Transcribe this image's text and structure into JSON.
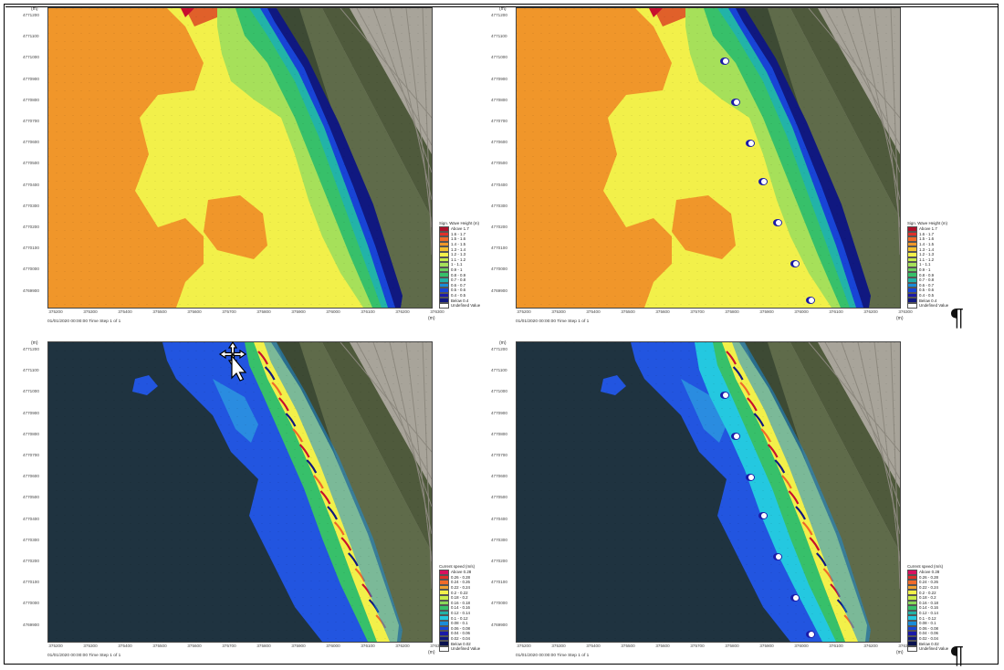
{
  "panels": [
    {
      "id": "top-left",
      "unit_y": "(m)",
      "unit_x": "(m)",
      "caption": "01/01/2020 00:00:00 Time Step 1 of 1",
      "legend_title": "Sign. Wave Height (m)",
      "legend_labels": [
        "Above 1.7",
        "1.6 - 1.7",
        "1.5 - 1.6",
        "1.4 - 1.5",
        "1.3 - 1.4",
        "1.2 - 1.3",
        "1.1 - 1.2",
        "1 - 1.1",
        "0.9 - 1",
        "0.8 - 0.9",
        "0.7 - 0.8",
        "0.6 - 0.7",
        "0.5 - 0.6",
        "0.4 - 0.5",
        "Below 0.4",
        "Undefined Value"
      ],
      "colors": {
        "red": "#c8102e",
        "orange": "#f0962a",
        "yellow": "#f2f04a",
        "lightgreen": "#a6e05a",
        "green": "#37c06a",
        "teal": "#22b3a8",
        "blue": "#1844d6",
        "navy": "#101880",
        "land": "#5f6b4a",
        "field": "#a8a49a"
      }
    },
    {
      "id": "top-right",
      "unit_y": "(m)",
      "unit_x": "(m)",
      "caption": "01/01/2020 00:00:00 Time Step 1 of 1",
      "legend_title": "Sign. Wave Height (m)",
      "legend_labels": [
        "Above 1.7",
        "1.6 - 1.7",
        "1.5 - 1.6",
        "1.4 - 1.5",
        "1.3 - 1.4",
        "1.2 - 1.3",
        "1.1 - 1.2",
        "1 - 1.1",
        "0.9 - 1",
        "0.8 - 0.9",
        "0.7 - 0.8",
        "0.6 - 0.7",
        "0.5 - 0.6",
        "0.4 - 0.5",
        "Below 0.4",
        "Undefined Value"
      ]
    },
    {
      "id": "bottom-left",
      "unit_y": "(m)",
      "unit_x": "(m)",
      "caption": "01/01/2020 00:00:00 Time Step 1 of 1",
      "legend_title": "Current speed (m/s)",
      "legend_labels": [
        "Above 0.28",
        "0.26 - 0.28",
        "0.24 - 0.26",
        "0.22 - 0.24",
        "0.2 - 0.22",
        "0.18 - 0.2",
        "0.16 - 0.18",
        "0.14 - 0.16",
        "0.12 - 0.14",
        "0.1 - 0.12",
        "0.08 - 0.1",
        "0.06 - 0.08",
        "0.04 - 0.06",
        "0.02 - 0.04",
        "Below 0.02",
        "Undefined Value"
      ]
    },
    {
      "id": "bottom-right",
      "unit_y": "(m)",
      "unit_x": "(m)",
      "caption": "01/01/2020 00:00:00 Time Step 1 of 1",
      "legend_title": "Current speed (m/s)",
      "legend_labels": [
        "Above 0.28",
        "0.26 - 0.28",
        "0.24 - 0.26",
        "0.22 - 0.24",
        "0.2 - 0.22",
        "0.18 - 0.2",
        "0.16 - 0.18",
        "0.14 - 0.16",
        "0.12 - 0.14",
        "0.1 - 0.12",
        "0.08 - 0.1",
        "0.06 - 0.08",
        "0.04 - 0.06",
        "0.02 - 0.04",
        "Below 0.02",
        "Undefined Value"
      ]
    }
  ],
  "y_ticks": [
    "4771200",
    "4771100",
    "4771000",
    "4770900",
    "4770800",
    "4770700",
    "4770600",
    "4770500",
    "4770400",
    "4770300",
    "4770200",
    "4770100",
    "4770000",
    "4769900"
  ],
  "x_ticks": [
    "375200",
    "375300",
    "375400",
    "375500",
    "375600",
    "375700",
    "375800",
    "375900",
    "376000",
    "376100",
    "376200",
    "376300"
  ],
  "wave_legend_colors": [
    "#b0102a",
    "#e0302a",
    "#f06a2a",
    "#f0962a",
    "#f4c030",
    "#f2f04a",
    "#c8ec4a",
    "#a6e05a",
    "#6cd060",
    "#37c06a",
    "#22b3a8",
    "#1a8cd8",
    "#1844d6",
    "#1a1aa8",
    "#101880",
    "#ffffff"
  ],
  "current_legend_colors": [
    "#d81060",
    "#e0302a",
    "#f06a2a",
    "#f0a030",
    "#f2f04a",
    "#c8ec4a",
    "#8ad85a",
    "#37c06a",
    "#22b3a8",
    "#24c8e0",
    "#1a8cd8",
    "#1844d6",
    "#1a1aa8",
    "#101880",
    "#0a1250",
    "#ffffff"
  ],
  "pilcrow": "¶"
}
